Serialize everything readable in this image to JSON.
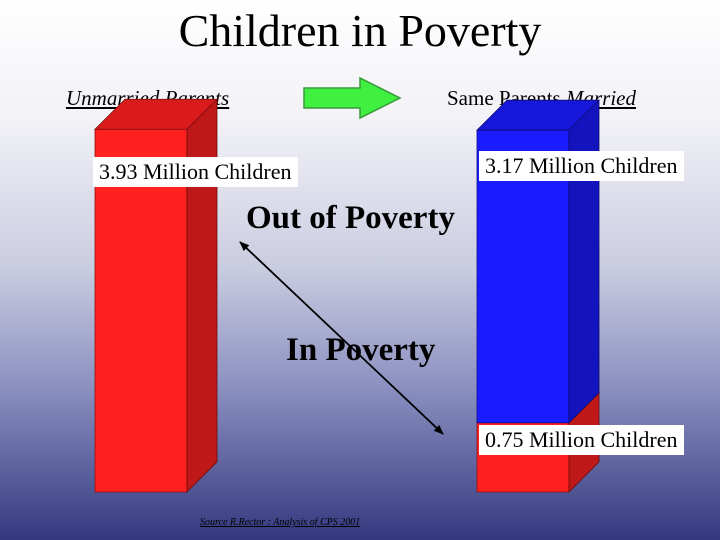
{
  "title": "Children in Poverty",
  "left_header": "Unmarried Parents",
  "right_header_prefix": "Same Parents ",
  "right_header_emphasis": "Married",
  "source": "Source R.Rector : Analysis of CPS 2001",
  "annotations": {
    "out_of_poverty": "Out of Poverty",
    "in_poverty": "In Poverty"
  },
  "colors": {
    "red": "#ff2020",
    "blue": "#1b1bff",
    "arrow_green": "#40f040"
  },
  "chart_data": {
    "type": "bar",
    "stacked": true,
    "categories": [
      "Unmarried Parents",
      "Same Parents Married"
    ],
    "series": [
      {
        "values": [
          3.93,
          0.75
        ],
        "color": "#ff2020"
      },
      {
        "values": [
          0,
          3.17
        ],
        "color": "#1b1bff"
      }
    ],
    "labels": {
      "left": "3.93 Million Children",
      "right_top": "3.17 Million Children",
      "right_bottom": "0.75 Million Children"
    }
  }
}
